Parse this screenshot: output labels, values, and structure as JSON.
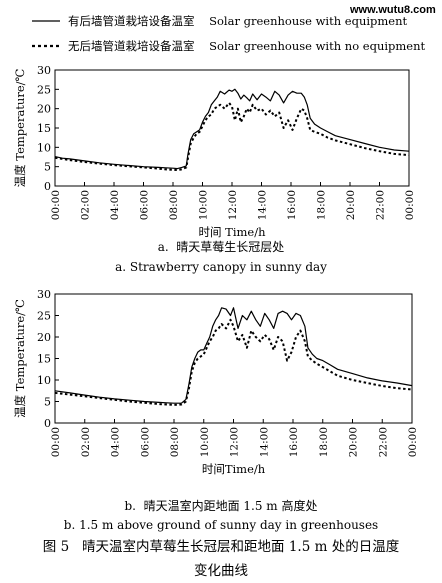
{
  "watermark": "www.wutu8.com",
  "legend": [
    {
      "label": "有后墙管道栽培设备温室    Solar greenhouse with equipment",
      "style": "solid"
    },
    {
      "label": "无后墙管道栽培设备温室    Solar greenhouse with no equipment",
      "style": "dotted"
    }
  ],
  "figure_caption": {
    "line1": "图 5   晴天温室内草莓生长冠层和距地面 1.5 m 处的日温度",
    "line2": "变化曲线"
  },
  "chart_data": [
    {
      "type": "line",
      "caption_cn": "a.  晴天草莓生长冠层处",
      "caption_en": "a. Strawberry canopy in sunny day",
      "ylabel": "温度  Temperature/℃",
      "xlabel": "时间    Time/h",
      "ylim": [
        0,
        30
      ],
      "yticks": [
        0,
        5,
        10,
        15,
        20,
        25,
        30
      ],
      "xlim": [
        0,
        24
      ],
      "xticks": [
        "00:00",
        "02:00",
        "04:00",
        "06:00",
        "08:00",
        "10:00",
        "12:00",
        "14:00",
        "16:00",
        "18:00",
        "20:00",
        "22:00",
        "00:00"
      ],
      "series": [
        {
          "name": "Solar greenhouse with equipment",
          "style": "solid",
          "points": [
            [
              0,
              7.6
            ],
            [
              0.5,
              7.2
            ],
            [
              1,
              7.0
            ],
            [
              2,
              6.5
            ],
            [
              3,
              6.0
            ],
            [
              4,
              5.6
            ],
            [
              5,
              5.3
            ],
            [
              6,
              5.0
            ],
            [
              7,
              4.8
            ],
            [
              7.5,
              4.7
            ],
            [
              8,
              4.6
            ],
            [
              8.3,
              4.5
            ],
            [
              8.6,
              4.8
            ],
            [
              8.9,
              5.2
            ],
            [
              9.0,
              8.0
            ],
            [
              9.2,
              12.0
            ],
            [
              9.4,
              13.5
            ],
            [
              9.6,
              14.0
            ],
            [
              9.8,
              14.5
            ],
            [
              10.0,
              16.5
            ],
            [
              10.2,
              18.0
            ],
            [
              10.4,
              19.0
            ],
            [
              10.6,
              21.0
            ],
            [
              10.8,
              22.0
            ],
            [
              11.0,
              23.0
            ],
            [
              11.2,
              24.5
            ],
            [
              11.5,
              23.8
            ],
            [
              11.8,
              24.8
            ],
            [
              12.0,
              24.5
            ],
            [
              12.2,
              25.0
            ],
            [
              12.4,
              24.0
            ],
            [
              12.6,
              22.5
            ],
            [
              12.8,
              23.5
            ],
            [
              13.0,
              22.8
            ],
            [
              13.2,
              22.0
            ],
            [
              13.4,
              23.8
            ],
            [
              13.7,
              22.3
            ],
            [
              14.0,
              23.8
            ],
            [
              14.3,
              23.0
            ],
            [
              14.6,
              22.0
            ],
            [
              14.9,
              24.5
            ],
            [
              15.2,
              23.5
            ],
            [
              15.5,
              21.5
            ],
            [
              15.8,
              23.5
            ],
            [
              16.1,
              24.5
            ],
            [
              16.4,
              24.0
            ],
            [
              16.7,
              24.0
            ],
            [
              16.9,
              23.0
            ],
            [
              17.1,
              21.0
            ],
            [
              17.3,
              17.5
            ],
            [
              17.6,
              16.0
            ],
            [
              18.0,
              15.0
            ],
            [
              18.5,
              14.0
            ],
            [
              19.0,
              13.0
            ],
            [
              20.0,
              12.0
            ],
            [
              21.0,
              11.0
            ],
            [
              22.0,
              10.0
            ],
            [
              23.0,
              9.3
            ],
            [
              24.0,
              9.0
            ]
          ]
        },
        {
          "name": "Solar greenhouse with no equipment",
          "style": "dotted",
          "points": [
            [
              0,
              7.3
            ],
            [
              0.5,
              7.0
            ],
            [
              1,
              6.7
            ],
            [
              2,
              6.2
            ],
            [
              3,
              5.8
            ],
            [
              4,
              5.4
            ],
            [
              5,
              5.1
            ],
            [
              6,
              4.8
            ],
            [
              7,
              4.5
            ],
            [
              7.5,
              4.3
            ],
            [
              8,
              4.2
            ],
            [
              8.3,
              4.1
            ],
            [
              8.6,
              4.3
            ],
            [
              8.9,
              4.8
            ],
            [
              9.0,
              7.0
            ],
            [
              9.2,
              11.0
            ],
            [
              9.4,
              12.5
            ],
            [
              9.6,
              13.5
            ],
            [
              9.8,
              14.0
            ],
            [
              10.0,
              15.5
            ],
            [
              10.2,
              17.0
            ],
            [
              10.4,
              18.0
            ],
            [
              10.6,
              18.5
            ],
            [
              10.8,
              20.0
            ],
            [
              11.0,
              20.5
            ],
            [
              11.2,
              21.0
            ],
            [
              11.5,
              20.0
            ],
            [
              11.8,
              21.5
            ],
            [
              12.0,
              20.5
            ],
            [
              12.2,
              17.0
            ],
            [
              12.4,
              20.0
            ],
            [
              12.6,
              16.5
            ],
            [
              12.8,
              18.0
            ],
            [
              13.0,
              20.0
            ],
            [
              13.2,
              19.0
            ],
            [
              13.4,
              21.0
            ],
            [
              13.7,
              19.5
            ],
            [
              14.0,
              20.0
            ],
            [
              14.3,
              18.5
            ],
            [
              14.6,
              19.5
            ],
            [
              14.9,
              18.0
            ],
            [
              15.2,
              19.0
            ],
            [
              15.5,
              15.0
            ],
            [
              15.8,
              17.0
            ],
            [
              16.1,
              14.5
            ],
            [
              16.4,
              17.5
            ],
            [
              16.7,
              20.0
            ],
            [
              16.9,
              19.5
            ],
            [
              17.1,
              17.5
            ],
            [
              17.3,
              14.5
            ],
            [
              17.6,
              14.0
            ],
            [
              18.0,
              13.5
            ],
            [
              18.5,
              12.5
            ],
            [
              19.0,
              11.8
            ],
            [
              20.0,
              10.8
            ],
            [
              21.0,
              9.8
            ],
            [
              22.0,
              9.0
            ],
            [
              23.0,
              8.3
            ],
            [
              24.0,
              8.0
            ]
          ]
        }
      ]
    },
    {
      "type": "line",
      "caption_cn": "b.  晴天温室内距地面 1.5 m 高度处",
      "caption_en": "b. 1.5 m above ground of sunny day in greenhouses",
      "ylabel": "温度  Temperature/℃",
      "xlabel": "时间Time/h",
      "ylim": [
        0,
        30
      ],
      "yticks": [
        0,
        5,
        10,
        15,
        20,
        25,
        30
      ],
      "xlim": [
        0,
        24
      ],
      "xticks": [
        "00:00",
        "02:00",
        "04:00",
        "06:00",
        "08:00",
        "10:00",
        "12:00",
        "14:00",
        "16:00",
        "18:00",
        "20:00",
        "22:00",
        "00:00"
      ],
      "series": [
        {
          "name": "Solar greenhouse with equipment",
          "style": "solid",
          "points": [
            [
              0,
              7.5
            ],
            [
              1,
              7.0
            ],
            [
              2,
              6.5
            ],
            [
              3,
              6.0
            ],
            [
              4,
              5.6
            ],
            [
              5,
              5.3
            ],
            [
              6,
              5.0
            ],
            [
              7,
              4.8
            ],
            [
              7.5,
              4.7
            ],
            [
              8,
              4.6
            ],
            [
              8.5,
              4.6
            ],
            [
              8.8,
              5.5
            ],
            [
              9.0,
              9.0
            ],
            [
              9.2,
              13.0
            ],
            [
              9.4,
              15.0
            ],
            [
              9.6,
              16.5
            ],
            [
              9.8,
              17.0
            ],
            [
              10.0,
              17.0
            ],
            [
              10.2,
              18.5
            ],
            [
              10.4,
              20.0
            ],
            [
              10.6,
              22.5
            ],
            [
              10.8,
              24.0
            ],
            [
              11.0,
              25.0
            ],
            [
              11.2,
              26.8
            ],
            [
              11.5,
              26.5
            ],
            [
              11.8,
              25.0
            ],
            [
              12.0,
              26.8
            ],
            [
              12.3,
              22.0
            ],
            [
              12.6,
              25.0
            ],
            [
              12.9,
              24.0
            ],
            [
              13.2,
              26.0
            ],
            [
              13.5,
              24.0
            ],
            [
              13.8,
              22.5
            ],
            [
              14.1,
              25.5
            ],
            [
              14.4,
              24.0
            ],
            [
              14.7,
              22.0
            ],
            [
              15.0,
              25.5
            ],
            [
              15.3,
              26.0
            ],
            [
              15.6,
              25.5
            ],
            [
              15.9,
              24.0
            ],
            [
              16.2,
              25.5
            ],
            [
              16.5,
              25.0
            ],
            [
              16.8,
              22.5
            ],
            [
              17.0,
              17.5
            ],
            [
              17.3,
              16.0
            ],
            [
              17.6,
              15.0
            ],
            [
              18.0,
              14.5
            ],
            [
              18.5,
              13.5
            ],
            [
              19.0,
              12.5
            ],
            [
              20.0,
              11.5
            ],
            [
              21.0,
              10.5
            ],
            [
              22.0,
              9.8
            ],
            [
              23.0,
              9.3
            ],
            [
              24.0,
              8.7
            ]
          ]
        },
        {
          "name": "Solar greenhouse with no equipment",
          "style": "dotted",
          "points": [
            [
              0,
              7.0
            ],
            [
              1,
              6.6
            ],
            [
              2,
              6.2
            ],
            [
              3,
              5.8
            ],
            [
              4,
              5.4
            ],
            [
              5,
              5.0
            ],
            [
              6,
              4.7
            ],
            [
              7,
              4.4
            ],
            [
              7.5,
              4.3
            ],
            [
              8,
              4.2
            ],
            [
              8.5,
              4.3
            ],
            [
              8.8,
              5.0
            ],
            [
              9.0,
              8.0
            ],
            [
              9.2,
              12.0
            ],
            [
              9.4,
              14.0
            ],
            [
              9.6,
              15.0
            ],
            [
              9.8,
              15.5
            ],
            [
              10.0,
              16.0
            ],
            [
              10.2,
              17.5
            ],
            [
              10.4,
              19.0
            ],
            [
              10.6,
              20.0
            ],
            [
              10.8,
              21.5
            ],
            [
              11.0,
              22.0
            ],
            [
              11.2,
              23.0
            ],
            [
              11.5,
              22.0
            ],
            [
              11.8,
              24.0
            ],
            [
              12.0,
              22.5
            ],
            [
              12.3,
              19.0
            ],
            [
              12.6,
              20.5
            ],
            [
              12.9,
              17.5
            ],
            [
              13.2,
              21.5
            ],
            [
              13.5,
              20.0
            ],
            [
              13.8,
              19.0
            ],
            [
              14.1,
              20.5
            ],
            [
              14.4,
              19.5
            ],
            [
              14.7,
              17.0
            ],
            [
              15.0,
              20.0
            ],
            [
              15.3,
              19.0
            ],
            [
              15.6,
              14.5
            ],
            [
              15.9,
              16.5
            ],
            [
              16.2,
              20.0
            ],
            [
              16.5,
              21.5
            ],
            [
              16.8,
              19.0
            ],
            [
              17.0,
              15.5
            ],
            [
              17.3,
              14.5
            ],
            [
              17.6,
              13.8
            ],
            [
              18.0,
              13.0
            ],
            [
              18.5,
              12.0
            ],
            [
              19.0,
              11.0
            ],
            [
              20.0,
              10.0
            ],
            [
              21.0,
              9.3
            ],
            [
              22.0,
              8.6
            ],
            [
              23.0,
              8.1
            ],
            [
              24.0,
              7.8
            ]
          ]
        }
      ]
    }
  ]
}
